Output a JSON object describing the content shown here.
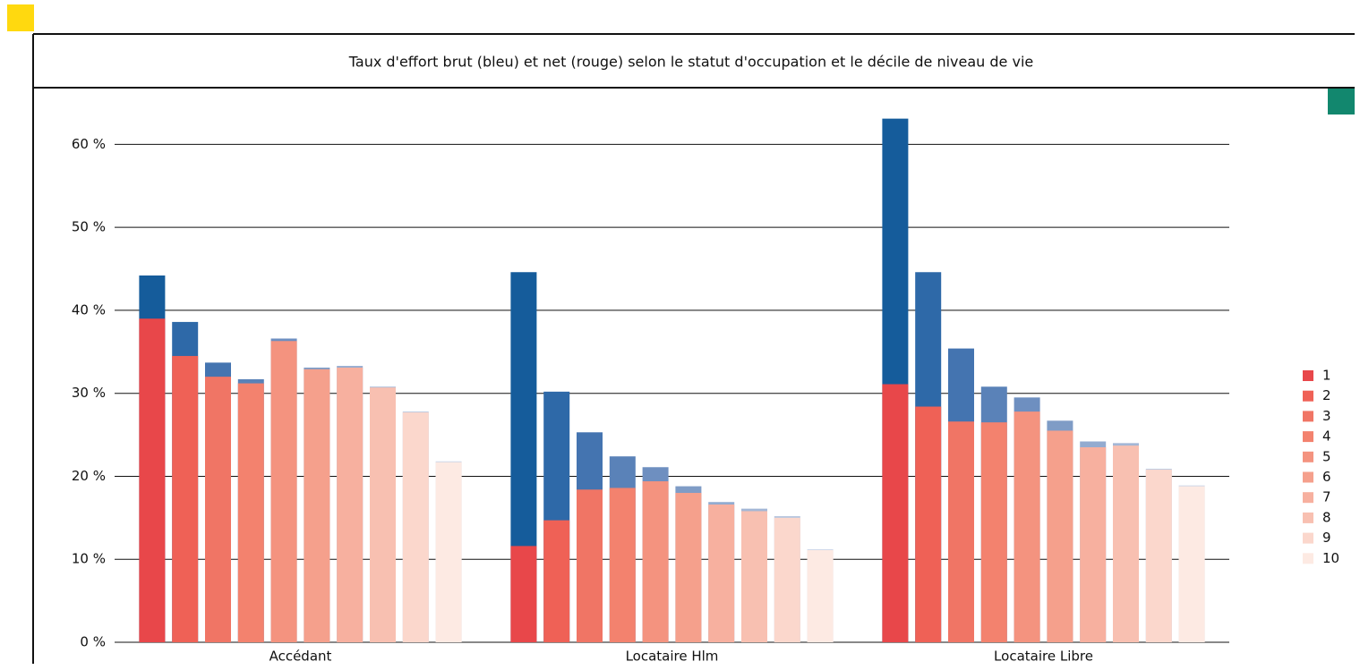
{
  "chart_data": {
    "type": "bar",
    "title": "Taux d'effort brut (bleu) et net (rouge) selon le statut d'occupation et le décile de niveau de vie",
    "categories": [
      "Accédant",
      "Locataire Hlm",
      "Locataire Libre"
    ],
    "series": [
      {
        "name": "1",
        "color": "#e8474a",
        "gross_color": "#155c9b",
        "values": [
          39.0,
          11.6,
          31.1
        ],
        "gross": [
          44.2,
          44.6,
          63.1
        ]
      },
      {
        "name": "2",
        "color": "#ef6156",
        "gross_color": "#2e69a8",
        "values": [
          34.5,
          14.7,
          28.4
        ],
        "gross": [
          38.6,
          30.2,
          44.6
        ]
      },
      {
        "name": "3",
        "color": "#f07565",
        "gross_color": "#4474b0",
        "values": [
          32.0,
          18.4,
          26.6
        ],
        "gross": [
          33.7,
          25.3,
          35.4
        ]
      },
      {
        "name": "4",
        "color": "#f3826e",
        "gross_color": "#5a82b8",
        "values": [
          31.2,
          18.6,
          26.5
        ],
        "gross": [
          31.7,
          22.4,
          30.8
        ]
      },
      {
        "name": "5",
        "color": "#f4937f",
        "gross_color": "#6e8fc0",
        "values": [
          36.3,
          19.4,
          27.8
        ],
        "gross": [
          36.6,
          21.1,
          29.5
        ]
      },
      {
        "name": "6",
        "color": "#f5a08c",
        "gross_color": "#7f9cc6",
        "values": [
          32.9,
          18.0,
          25.5
        ],
        "gross": [
          33.1,
          18.8,
          26.7
        ]
      },
      {
        "name": "7",
        "color": "#f7b09f",
        "gross_color": "#93abd0",
        "values": [
          33.1,
          16.6,
          23.5
        ],
        "gross": [
          33.3,
          16.9,
          24.2
        ]
      },
      {
        "name": "8",
        "color": "#f8c0b1",
        "gross_color": "#a4b7d6",
        "values": [
          30.7,
          15.8,
          23.7
        ],
        "gross": [
          30.8,
          16.1,
          24.0
        ]
      },
      {
        "name": "9",
        "color": "#fbd7cc",
        "gross_color": "#b8c7df",
        "values": [
          27.7,
          15.0,
          20.8
        ],
        "gross": [
          27.8,
          15.2,
          20.9
        ]
      },
      {
        "name": "10",
        "color": "#fdeae3",
        "gross_color": "#cad5e8",
        "values": [
          21.7,
          11.1,
          18.8
        ],
        "gross": [
          21.8,
          11.2,
          18.9
        ]
      }
    ],
    "ylim": [
      0,
      65
    ],
    "yticks": [
      {
        "value": 0,
        "label": "0 %"
      },
      {
        "value": 10,
        "label": "10 %"
      },
      {
        "value": 20,
        "label": "20 %"
      },
      {
        "value": 30,
        "label": "30 %"
      },
      {
        "value": 40,
        "label": "40 %"
      },
      {
        "value": 50,
        "label": "50 %"
      },
      {
        "value": 60,
        "label": "60 %"
      }
    ],
    "grid": true,
    "legend": "right"
  }
}
